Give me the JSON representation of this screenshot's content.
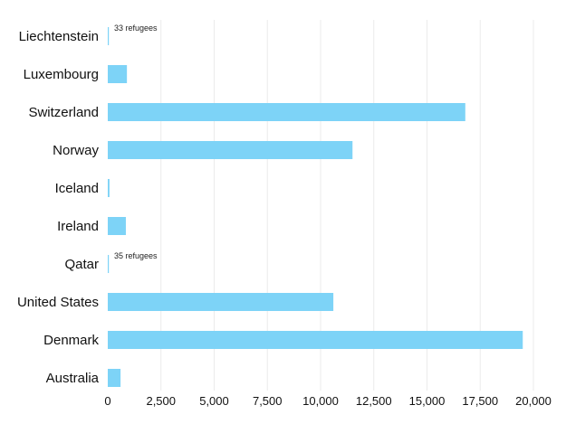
{
  "chart_data": {
    "type": "bar",
    "orientation": "horizontal",
    "categories": [
      "Liechtenstein",
      "Luxembourg",
      "Switzerland",
      "Norway",
      "Iceland",
      "Ireland",
      "Qatar",
      "United States",
      "Denmark",
      "Australia"
    ],
    "values": [
      33,
      900,
      16800,
      11500,
      80,
      850,
      35,
      10600,
      19500,
      600
    ],
    "annotations": [
      {
        "category": "Liechtenstein",
        "text": "33 refugees"
      },
      {
        "category": "Qatar",
        "text": "35 refugees"
      }
    ],
    "xlim": [
      0,
      20000
    ],
    "xticks": [
      0,
      2500,
      5000,
      7500,
      10000,
      12500,
      15000,
      17500,
      20000
    ],
    "xtick_labels": [
      "0",
      "2,500",
      "5,000",
      "7,500",
      "10,000",
      "12,500",
      "15,000",
      "17,500",
      "20,000"
    ],
    "grid": true,
    "bar_color": "#7dd3f7",
    "grid_color": "#ebebeb"
  }
}
